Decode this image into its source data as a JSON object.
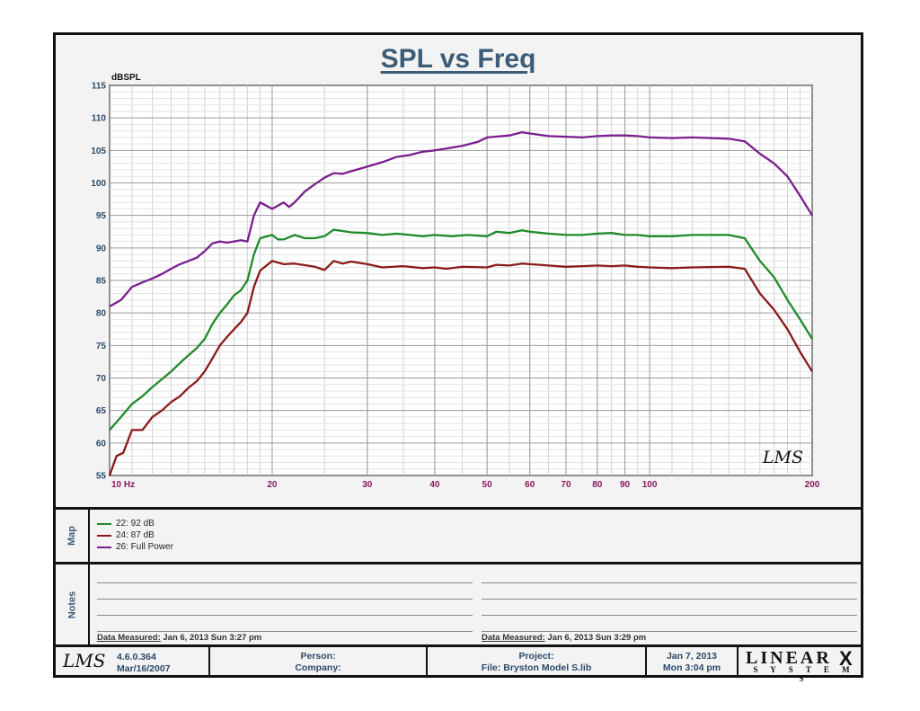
{
  "title": "SPL vs Freq",
  "chart_data": {
    "type": "line",
    "title": "SPL vs Freq",
    "ylabel": "dBSPL",
    "xlabel": "",
    "x_unit_label": "Hz",
    "x_scale": "log",
    "xlim": [
      10,
      200
    ],
    "ylim": [
      55,
      115
    ],
    "y_ticks": [
      55,
      60,
      65,
      70,
      75,
      80,
      85,
      90,
      95,
      100,
      105,
      110,
      115
    ],
    "x_ticks": [
      10,
      20,
      30,
      40,
      50,
      60,
      70,
      80,
      90,
      100,
      200
    ],
    "grid": true,
    "watermark": "LMS",
    "series": [
      {
        "name": "22: 92 dB",
        "color": "#1f8a2a",
        "points": [
          [
            10,
            62
          ],
          [
            10.5,
            64
          ],
          [
            11,
            66
          ],
          [
            11.5,
            67.2
          ],
          [
            12,
            68.6
          ],
          [
            12.5,
            69.8
          ],
          [
            13,
            71
          ],
          [
            13.5,
            72.3
          ],
          [
            14,
            73.5
          ],
          [
            14.5,
            74.6
          ],
          [
            15,
            76
          ],
          [
            15.5,
            78.3
          ],
          [
            16,
            80
          ],
          [
            16.5,
            81.3
          ],
          [
            17,
            82.7
          ],
          [
            17.5,
            83.5
          ],
          [
            18,
            85
          ],
          [
            18.5,
            89
          ],
          [
            19,
            91.5
          ],
          [
            20,
            92
          ],
          [
            20.5,
            91.3
          ],
          [
            21,
            91.3
          ],
          [
            22,
            92
          ],
          [
            23,
            91.5
          ],
          [
            24,
            91.5
          ],
          [
            25,
            91.8
          ],
          [
            26,
            92.8
          ],
          [
            27,
            92.6
          ],
          [
            28,
            92.4
          ],
          [
            30,
            92.3
          ],
          [
            32,
            92
          ],
          [
            34,
            92.2
          ],
          [
            36,
            92
          ],
          [
            38,
            91.8
          ],
          [
            40,
            92
          ],
          [
            43,
            91.8
          ],
          [
            46,
            92
          ],
          [
            50,
            91.8
          ],
          [
            52,
            92.5
          ],
          [
            55,
            92.3
          ],
          [
            58,
            92.7
          ],
          [
            60,
            92.5
          ],
          [
            65,
            92.2
          ],
          [
            70,
            92
          ],
          [
            75,
            92
          ],
          [
            80,
            92.2
          ],
          [
            85,
            92.3
          ],
          [
            90,
            92
          ],
          [
            95,
            92
          ],
          [
            100,
            91.8
          ],
          [
            110,
            91.8
          ],
          [
            120,
            92
          ],
          [
            140,
            92
          ],
          [
            150,
            91.5
          ],
          [
            160,
            88
          ],
          [
            170,
            85.5
          ],
          [
            180,
            82
          ],
          [
            190,
            79
          ],
          [
            200,
            76
          ]
        ]
      },
      {
        "name": "24: 87 dB",
        "color": "#8a1a1a",
        "points": [
          [
            10,
            55
          ],
          [
            10.3,
            58
          ],
          [
            10.6,
            58.5
          ],
          [
            11,
            62
          ],
          [
            11.5,
            62
          ],
          [
            12,
            64
          ],
          [
            12.5,
            65
          ],
          [
            13,
            66.3
          ],
          [
            13.5,
            67.2
          ],
          [
            14,
            68.5
          ],
          [
            14.5,
            69.5
          ],
          [
            15,
            71
          ],
          [
            15.5,
            73
          ],
          [
            16,
            75
          ],
          [
            16.5,
            76.3
          ],
          [
            17,
            77.5
          ],
          [
            17.5,
            78.6
          ],
          [
            18,
            80
          ],
          [
            18.5,
            84
          ],
          [
            19,
            86.5
          ],
          [
            20,
            88
          ],
          [
            21,
            87.5
          ],
          [
            22,
            87.6
          ],
          [
            24,
            87.1
          ],
          [
            25,
            86.6
          ],
          [
            26,
            88
          ],
          [
            27,
            87.6
          ],
          [
            28,
            87.9
          ],
          [
            30,
            87.5
          ],
          [
            32,
            87
          ],
          [
            35,
            87.2
          ],
          [
            38,
            86.9
          ],
          [
            40,
            87
          ],
          [
            42,
            86.8
          ],
          [
            45,
            87.1
          ],
          [
            50,
            87
          ],
          [
            52,
            87.4
          ],
          [
            55,
            87.3
          ],
          [
            58,
            87.6
          ],
          [
            60,
            87.5
          ],
          [
            65,
            87.3
          ],
          [
            70,
            87.1
          ],
          [
            75,
            87.2
          ],
          [
            80,
            87.3
          ],
          [
            85,
            87.2
          ],
          [
            90,
            87.3
          ],
          [
            95,
            87.1
          ],
          [
            100,
            87
          ],
          [
            110,
            86.9
          ],
          [
            120,
            87
          ],
          [
            140,
            87.1
          ],
          [
            150,
            86.8
          ],
          [
            160,
            83
          ],
          [
            170,
            80.5
          ],
          [
            180,
            77.5
          ],
          [
            190,
            74
          ],
          [
            200,
            71
          ]
        ]
      },
      {
        "name": "26: Full Power",
        "color": "#7a1f8f",
        "points": [
          [
            10,
            81
          ],
          [
            10.5,
            82
          ],
          [
            11,
            84
          ],
          [
            11.5,
            84.7
          ],
          [
            12,
            85.3
          ],
          [
            12.5,
            86
          ],
          [
            13,
            86.8
          ],
          [
            13.5,
            87.5
          ],
          [
            14,
            88
          ],
          [
            14.5,
            88.5
          ],
          [
            15,
            89.5
          ],
          [
            15.5,
            90.7
          ],
          [
            16,
            91
          ],
          [
            16.5,
            90.8
          ],
          [
            17,
            91
          ],
          [
            17.5,
            91.2
          ],
          [
            18,
            91
          ],
          [
            18.5,
            95
          ],
          [
            19,
            97
          ],
          [
            19.5,
            96.5
          ],
          [
            20,
            96
          ],
          [
            21,
            97
          ],
          [
            21.5,
            96.3
          ],
          [
            22,
            97
          ],
          [
            23,
            98.7
          ],
          [
            24,
            99.8
          ],
          [
            25,
            100.8
          ],
          [
            26,
            101.5
          ],
          [
            27,
            101.4
          ],
          [
            28,
            101.8
          ],
          [
            30,
            102.5
          ],
          [
            32,
            103.2
          ],
          [
            34,
            104
          ],
          [
            36,
            104.3
          ],
          [
            38,
            104.8
          ],
          [
            40,
            105
          ],
          [
            42,
            105.3
          ],
          [
            45,
            105.7
          ],
          [
            48,
            106.3
          ],
          [
            50,
            107
          ],
          [
            55,
            107.3
          ],
          [
            58,
            107.8
          ],
          [
            60,
            107.6
          ],
          [
            65,
            107.2
          ],
          [
            70,
            107.1
          ],
          [
            75,
            107
          ],
          [
            80,
            107.2
          ],
          [
            85,
            107.3
          ],
          [
            90,
            107.3
          ],
          [
            95,
            107.2
          ],
          [
            100,
            107
          ],
          [
            110,
            106.9
          ],
          [
            120,
            107
          ],
          [
            140,
            106.8
          ],
          [
            150,
            106.4
          ],
          [
            160,
            104.5
          ],
          [
            170,
            103
          ],
          [
            180,
            101
          ],
          [
            190,
            98
          ],
          [
            200,
            95
          ]
        ]
      }
    ]
  },
  "map": {
    "label": "Map",
    "items": [
      {
        "label": "22: 92 dB",
        "color": "#1f8a2a"
      },
      {
        "label": "24: 87 dB",
        "color": "#8a1a1a"
      },
      {
        "label": "26: Full Power",
        "color": "#7a1f8f"
      }
    ]
  },
  "notes": {
    "label": "Notes",
    "left_prefix": "Data Measured:",
    "left_value": "Jan  6, 2013  Sun  3:27 pm",
    "right_prefix": "Data Measured:",
    "right_value": "Jan  6, 2013  Sun  3:29 pm"
  },
  "footer": {
    "logo": "LMS",
    "version": "4.6.0.364",
    "version_date": "Mar/16/2007",
    "person_label": "Person:",
    "company_label": "Company:",
    "project_label": "Project:",
    "file_label": "File: Bryston Model S.lib",
    "date": "Jan  7, 2013",
    "time": "Mon  3:04 pm",
    "brand_top": "LINEAR",
    "brand_x": "X",
    "brand_bottom": "S Y S T E M S"
  }
}
